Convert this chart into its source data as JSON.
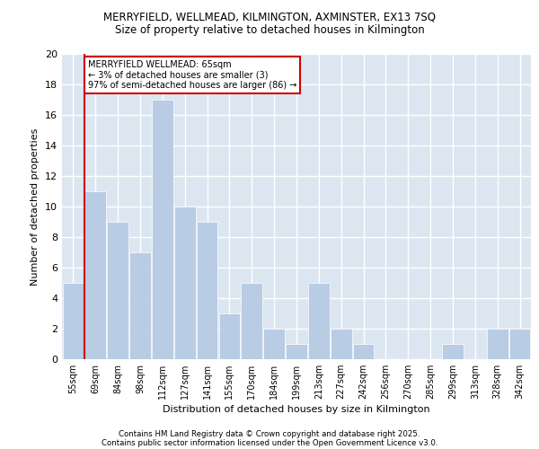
{
  "title1": "MERRYFIELD, WELLMEAD, KILMINGTON, AXMINSTER, EX13 7SQ",
  "title2": "Size of property relative to detached houses in Kilmington",
  "xlabel": "Distribution of detached houses by size in Kilmington",
  "ylabel": "Number of detached properties",
  "categories": [
    "55sqm",
    "69sqm",
    "84sqm",
    "98sqm",
    "112sqm",
    "127sqm",
    "141sqm",
    "155sqm",
    "170sqm",
    "184sqm",
    "199sqm",
    "213sqm",
    "227sqm",
    "242sqm",
    "256sqm",
    "270sqm",
    "285sqm",
    "299sqm",
    "313sqm",
    "328sqm",
    "342sqm"
  ],
  "values": [
    5,
    11,
    9,
    7,
    17,
    10,
    9,
    3,
    5,
    2,
    1,
    5,
    2,
    1,
    0,
    0,
    0,
    1,
    0,
    2,
    2
  ],
  "bar_color": "#b8cce4",
  "bar_edge_color": "#ffffff",
  "background_color": "#dce6f1",
  "grid_color": "#ffffff",
  "annotation_box_color": "#ffffff",
  "annotation_border_color": "#cc0000",
  "annotation_line_color": "#cc0000",
  "annotation_text_line1": "MERRYFIELD WELLMEAD: 65sqm",
  "annotation_text_line2": "← 3% of detached houses are smaller (3)",
  "annotation_text_line3": "97% of semi-detached houses are larger (86) →",
  "ylim": [
    0,
    20
  ],
  "yticks": [
    0,
    2,
    4,
    6,
    8,
    10,
    12,
    14,
    16,
    18,
    20
  ],
  "footnote1": "Contains HM Land Registry data © Crown copyright and database right 2025.",
  "footnote2": "Contains public sector information licensed under the Open Government Licence v3.0."
}
